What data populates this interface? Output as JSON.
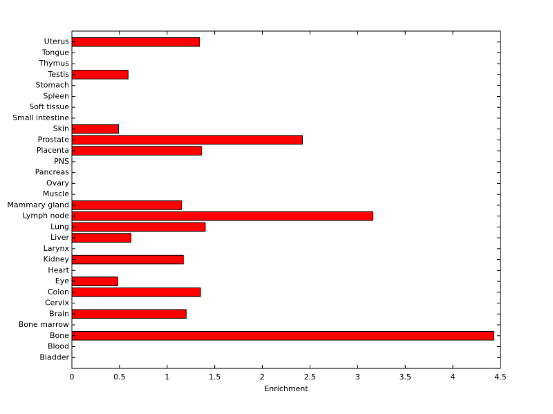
{
  "chart_data": {
    "type": "barh",
    "xlabel": "Enrichment",
    "categories": [
      "Bladder",
      "Blood",
      "Bone",
      "Bone marrow",
      "Brain",
      "Cervix",
      "Colon",
      "Eye",
      "Heart",
      "Kidney",
      "Larynx",
      "Liver",
      "Lung",
      "Lymph node",
      "Mammary gland",
      "Muscle",
      "Ovary",
      "Pancreas",
      "PNS",
      "Placenta",
      "Prostate",
      "Skin",
      "Small intestine",
      "Soft tissue",
      "Spleen",
      "Stomach",
      "Testis",
      "Thymus",
      "Tongue",
      "Uterus"
    ],
    "values": [
      0,
      0,
      4.43,
      0,
      1.2,
      0,
      1.35,
      0.48,
      0,
      1.17,
      0,
      0.62,
      1.4,
      3.16,
      1.15,
      0,
      0,
      0,
      0,
      1.36,
      2.42,
      0.49,
      0,
      0,
      0,
      0,
      0.59,
      0,
      0,
      1.34
    ],
    "color": "#ff0000",
    "xlim": [
      0,
      4.5
    ],
    "xticks": [
      0,
      0.5,
      1,
      1.5,
      2,
      2.5,
      3,
      3.5,
      4,
      4.5
    ]
  }
}
